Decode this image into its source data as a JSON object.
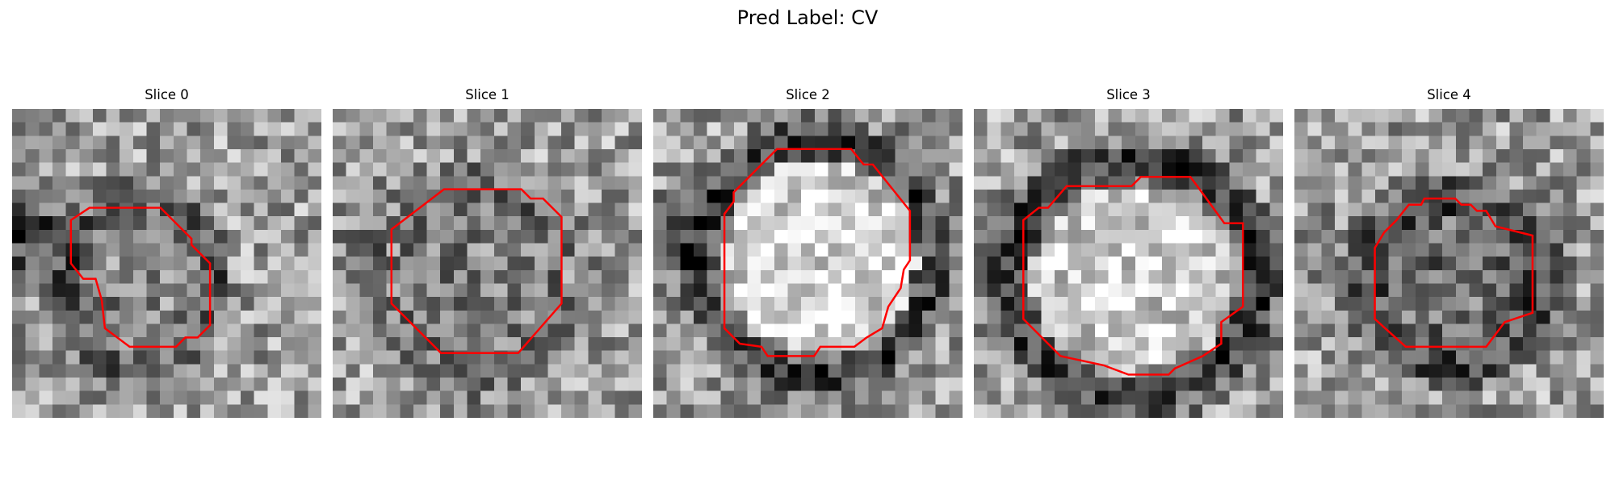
{
  "figure": {
    "title": "Pred Label: CV"
  },
  "panels": [
    {
      "title": "Slice 0",
      "contour": [
        [
          0.25,
          0.32
        ],
        [
          0.48,
          0.32
        ],
        [
          0.58,
          0.42
        ],
        [
          0.58,
          0.44
        ],
        [
          0.64,
          0.5
        ],
        [
          0.64,
          0.7
        ],
        [
          0.6,
          0.74
        ],
        [
          0.56,
          0.74
        ],
        [
          0.53,
          0.77
        ],
        [
          0.38,
          0.77
        ],
        [
          0.3,
          0.71
        ],
        [
          0.29,
          0.62
        ],
        [
          0.27,
          0.55
        ],
        [
          0.23,
          0.55
        ],
        [
          0.19,
          0.5
        ],
        [
          0.19,
          0.36
        ]
      ]
    },
    {
      "title": "Slice 1",
      "contour": [
        [
          0.36,
          0.26
        ],
        [
          0.61,
          0.26
        ],
        [
          0.64,
          0.29
        ],
        [
          0.68,
          0.29
        ],
        [
          0.74,
          0.35
        ],
        [
          0.74,
          0.63
        ],
        [
          0.6,
          0.79
        ],
        [
          0.35,
          0.79
        ],
        [
          0.19,
          0.63
        ],
        [
          0.19,
          0.39
        ]
      ]
    },
    {
      "title": "Slice 2",
      "contour": [
        [
          0.4,
          0.13
        ],
        [
          0.64,
          0.13
        ],
        [
          0.68,
          0.18
        ],
        [
          0.71,
          0.18
        ],
        [
          0.83,
          0.33
        ],
        [
          0.83,
          0.49
        ],
        [
          0.81,
          0.52
        ],
        [
          0.8,
          0.58
        ],
        [
          0.76,
          0.64
        ],
        [
          0.74,
          0.71
        ],
        [
          0.69,
          0.74
        ],
        [
          0.65,
          0.77
        ],
        [
          0.54,
          0.77
        ],
        [
          0.52,
          0.8
        ],
        [
          0.37,
          0.8
        ],
        [
          0.35,
          0.77
        ],
        [
          0.28,
          0.76
        ],
        [
          0.23,
          0.71
        ],
        [
          0.23,
          0.34
        ],
        [
          0.26,
          0.3
        ],
        [
          0.26,
          0.27
        ]
      ]
    },
    {
      "title": "Slice 3",
      "contour": [
        [
          0.3,
          0.25
        ],
        [
          0.51,
          0.25
        ],
        [
          0.54,
          0.22
        ],
        [
          0.7,
          0.22
        ],
        [
          0.73,
          0.26
        ],
        [
          0.81,
          0.37
        ],
        [
          0.87,
          0.37
        ],
        [
          0.87,
          0.64
        ],
        [
          0.8,
          0.69
        ],
        [
          0.8,
          0.76
        ],
        [
          0.74,
          0.8
        ],
        [
          0.65,
          0.84
        ],
        [
          0.63,
          0.86
        ],
        [
          0.5,
          0.86
        ],
        [
          0.42,
          0.83
        ],
        [
          0.28,
          0.8
        ],
        [
          0.16,
          0.68
        ],
        [
          0.16,
          0.36
        ],
        [
          0.21,
          0.32
        ],
        [
          0.24,
          0.32
        ]
      ]
    },
    {
      "title": "Slice 4",
      "contour": [
        [
          0.42,
          0.29
        ],
        [
          0.52,
          0.29
        ],
        [
          0.54,
          0.31
        ],
        [
          0.57,
          0.31
        ],
        [
          0.59,
          0.33
        ],
        [
          0.62,
          0.33
        ],
        [
          0.65,
          0.38
        ],
        [
          0.77,
          0.41
        ],
        [
          0.77,
          0.66
        ],
        [
          0.68,
          0.69
        ],
        [
          0.62,
          0.77
        ],
        [
          0.36,
          0.77
        ],
        [
          0.26,
          0.68
        ],
        [
          0.26,
          0.45
        ],
        [
          0.29,
          0.4
        ],
        [
          0.33,
          0.36
        ],
        [
          0.37,
          0.31
        ],
        [
          0.41,
          0.31
        ]
      ]
    }
  ],
  "style": {
    "contour_color": "#ff0000"
  }
}
